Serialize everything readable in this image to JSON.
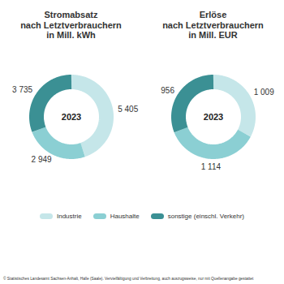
{
  "chart_data": [
    {
      "type": "donut",
      "title": "Stromabsatz\nnach Letztverbrauchern\nin Mill. kWh",
      "categories": [
        "Industrie",
        "Haushalte",
        "sonstige (einschl. Verkehr)"
      ],
      "values": [
        5405,
        2949,
        3735
      ],
      "value_labels": [
        "5 405",
        "2 949",
        "3 735"
      ],
      "colors": [
        "#c5e6e9",
        "#8bcfd3",
        "#3b9094"
      ],
      "annotations": [
        "2023"
      ],
      "data_labels": true,
      "legend": "bottom",
      "tick_labels": false
    },
    {
      "type": "donut",
      "title": "Erlöse\nnach Letztverbrauchern\nin Mill. EUR",
      "categories": [
        "Industrie",
        "Haushalte",
        "sonstige (einschl. Verkehr)"
      ],
      "values": [
        1009,
        1114,
        956
      ],
      "value_labels": [
        "1 009",
        "1 114",
        "956"
      ],
      "colors": [
        "#c5e6e9",
        "#8bcfd3",
        "#3b9094"
      ],
      "annotations": [
        "2023"
      ],
      "data_labels": true,
      "legend": "bottom",
      "tick_labels": false
    }
  ],
  "source": "© Statistisches Landesamt Sachsen-Anhalt, Halle (Saale). Vervielfältigung und Verbreitung, auch auszugsweise, nur mit Quellenangabe gestattet"
}
